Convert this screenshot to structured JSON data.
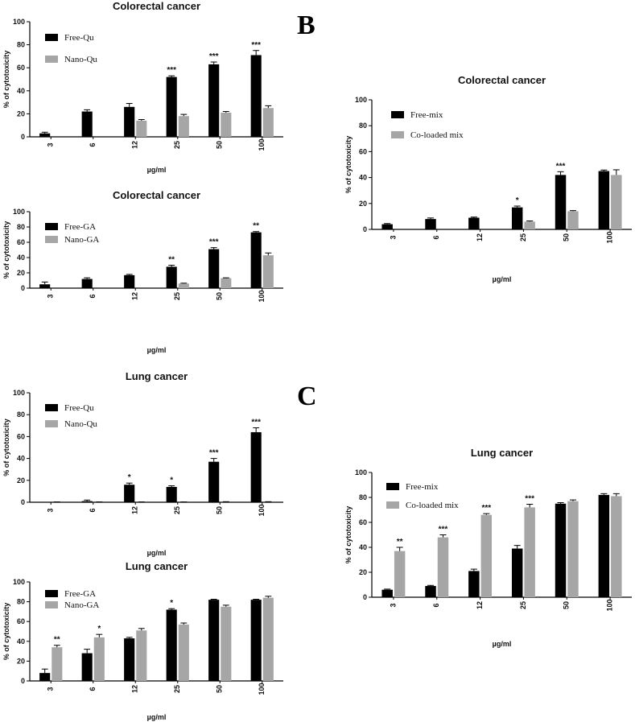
{
  "panel_labels": [
    "B",
    "C"
  ],
  "colors": {
    "free": "#000000",
    "nano": "#a6a6a6"
  },
  "chart_data": [
    {
      "id": "qu-colorectal",
      "type": "bar",
      "title": "Colorectal cancer",
      "xlabel": "µg/ml",
      "ylabel": "% of cytotoxicity",
      "ylim": [
        0,
        100
      ],
      "yticks": [
        0,
        20,
        40,
        60,
        80,
        100
      ],
      "categories": [
        "3",
        "6",
        "12",
        "25",
        "50",
        "100"
      ],
      "legend_position": "top-left",
      "series": [
        {
          "name": "Free-Qu",
          "values": [
            3,
            22,
            26,
            52,
            63,
            71
          ],
          "errors": [
            1,
            1.5,
            3,
            1,
            2,
            4
          ]
        },
        {
          "name": "Nano-Qu",
          "values": [
            0,
            0,
            14,
            18,
            21,
            25
          ],
          "errors": [
            0,
            0,
            1,
            1.5,
            1,
            2
          ]
        }
      ],
      "annotations": [
        "",
        "",
        "",
        "***",
        "***",
        "***"
      ]
    },
    {
      "id": "ga-colorectal",
      "type": "bar",
      "title": "Colorectal cancer",
      "xlabel": "µg/ml",
      "ylabel": "% of cytotoxicity",
      "ylim": [
        0,
        100
      ],
      "yticks": [
        0,
        20,
        40,
        60,
        80,
        100
      ],
      "categories": [
        "3",
        "6",
        "12",
        "25",
        "50",
        "100"
      ],
      "legend_position": "top-left",
      "series": [
        {
          "name": "Free-GA",
          "values": [
            5,
            12,
            17,
            28,
            51,
            73
          ],
          "errors": [
            3,
            1.5,
            1,
            2,
            2,
            1
          ]
        },
        {
          "name": "Nano-GA",
          "values": [
            0,
            0,
            0,
            6,
            13,
            43
          ],
          "errors": [
            0,
            0,
            0,
            0.5,
            0.5,
            3
          ]
        }
      ],
      "annotations": [
        "",
        "",
        "",
        "**",
        "***",
        "**"
      ]
    },
    {
      "id": "qu-lung",
      "type": "bar",
      "title": "Lung cancer",
      "xlabel": "µg/ml",
      "ylabel": "% of cytotoxicity",
      "ylim": [
        0,
        100
      ],
      "yticks": [
        0,
        20,
        40,
        60,
        80,
        100
      ],
      "categories": [
        "3",
        "6",
        "12",
        "25",
        "50",
        "100"
      ],
      "legend_position": "top-left",
      "series": [
        {
          "name": "Free-Qu",
          "values": [
            0,
            1,
            16,
            14,
            37,
            64
          ],
          "errors": [
            0,
            1,
            1.5,
            1,
            3,
            4
          ]
        },
        {
          "name": "Nano-Qu",
          "values": [
            0,
            0,
            0,
            0,
            0,
            0
          ],
          "errors": [
            0.3,
            0.3,
            0.3,
            0.3,
            0.5,
            0.5
          ]
        }
      ],
      "annotations": [
        "",
        "",
        "*",
        "*",
        "***",
        "***"
      ]
    },
    {
      "id": "ga-lung",
      "type": "bar",
      "title": "Lung cancer",
      "xlabel": "µg/ml",
      "ylabel": "% of cytotoxicity",
      "ylim": [
        0,
        100
      ],
      "yticks": [
        0,
        20,
        40,
        60,
        80,
        100
      ],
      "categories": [
        "3",
        "6",
        "12",
        "25",
        "50",
        "100"
      ],
      "legend_position": "top-left",
      "series": [
        {
          "name": "Free-GA",
          "values": [
            8,
            28,
            43,
            72,
            82,
            82
          ],
          "errors": [
            4,
            4,
            1,
            1,
            0.5,
            0.5
          ]
        },
        {
          "name": "Nano-GA",
          "values": [
            34,
            44,
            51,
            57,
            75,
            84
          ],
          "errors": [
            2,
            3,
            2,
            1.5,
            1.5,
            1.5
          ]
        }
      ],
      "annotations": [
        "**",
        "*",
        "",
        "*",
        "",
        ""
      ]
    },
    {
      "id": "mix-colorectal",
      "type": "bar",
      "title": "Colorectal cancer",
      "xlabel": "µg/ml",
      "ylabel": "% of cytotoxicity",
      "ylim": [
        0,
        100
      ],
      "yticks": [
        0,
        20,
        40,
        60,
        80,
        100
      ],
      "categories": [
        "3",
        "6",
        "12",
        "25",
        "50",
        "100"
      ],
      "legend_position": "top-left",
      "series": [
        {
          "name": "Free-mix",
          "values": [
            4,
            8,
            9,
            17,
            42,
            45
          ],
          "errors": [
            0.5,
            0.8,
            0.5,
            1,
            2.5,
            0.8
          ]
        },
        {
          "name": "Co-loaded mix",
          "values": [
            0,
            0,
            0,
            6,
            14,
            42
          ],
          "errors": [
            0,
            0,
            0,
            0.5,
            0.5,
            4
          ]
        }
      ],
      "annotations": [
        "",
        "",
        "",
        "*",
        "***",
        ""
      ]
    },
    {
      "id": "mix-lung",
      "type": "bar",
      "title": "Lung cancer",
      "xlabel": "µg/ml",
      "ylabel": "% of cytotoxicity",
      "ylim": [
        0,
        100
      ],
      "yticks": [
        0,
        20,
        40,
        60,
        80,
        100
      ],
      "categories": [
        "3",
        "6",
        "12",
        "25",
        "50",
        "100"
      ],
      "legend_position": "top-left",
      "series": [
        {
          "name": "Free-mix",
          "values": [
            6,
            9,
            21,
            39,
            75,
            82
          ],
          "errors": [
            0.5,
            0.5,
            1.5,
            2.5,
            0.8,
            1
          ]
        },
        {
          "name": "Co-loaded mix",
          "values": [
            37,
            48,
            66,
            72,
            77,
            81
          ],
          "errors": [
            3,
            2,
            1,
            2.5,
            1,
            2
          ]
        }
      ],
      "annotations": [
        "**",
        "***",
        "***",
        "***",
        "",
        ""
      ]
    }
  ]
}
